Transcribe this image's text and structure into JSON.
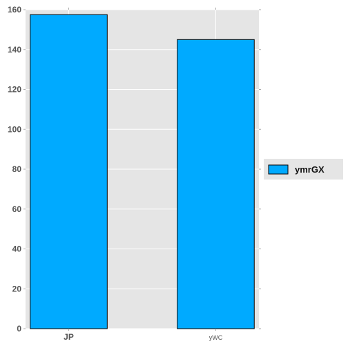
{
  "chart_data": {
    "type": "bar",
    "categories": [
      "JP",
      "yWC"
    ],
    "series": [
      {
        "name": "ymrGX",
        "values": [
          157.5,
          145
        ]
      }
    ],
    "ylim": [
      0,
      160
    ],
    "yticks": [
      0,
      20,
      40,
      60,
      80,
      100,
      120,
      140,
      160
    ],
    "title": "",
    "xlabel": "",
    "ylabel": "",
    "grid": true,
    "legend_position": "right",
    "bar_color": "#00aaff",
    "plot_background": "#e5e5e5",
    "grid_color": "#ffffff"
  }
}
